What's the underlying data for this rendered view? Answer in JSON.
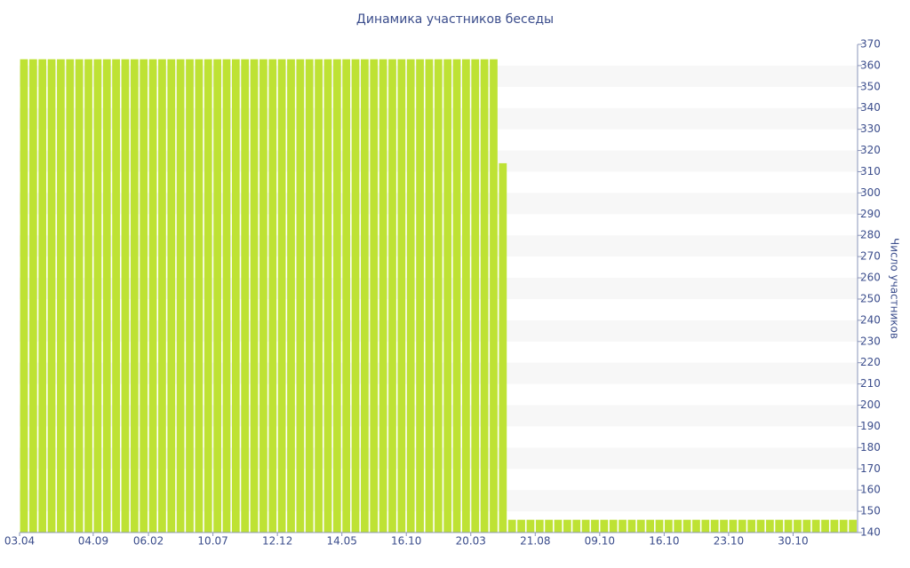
{
  "chart_data": {
    "type": "bar",
    "title": "Динамика участников беседы",
    "y_label": "Число участников",
    "categories": [
      "03.04",
      null,
      null,
      null,
      null,
      null,
      null,
      null,
      "04.09",
      null,
      null,
      null,
      null,
      null,
      "06.02",
      null,
      null,
      null,
      null,
      null,
      null,
      "10.07",
      null,
      null,
      null,
      null,
      null,
      null,
      "12.12",
      null,
      null,
      null,
      null,
      null,
      null,
      "14.05",
      null,
      null,
      null,
      null,
      null,
      null,
      "16.10",
      null,
      null,
      null,
      null,
      null,
      null,
      "20.03",
      null,
      null,
      null,
      null,
      null,
      null,
      "21.08",
      null,
      null,
      null,
      null,
      null,
      null,
      "09.10",
      null,
      null,
      null,
      null,
      null,
      null,
      "16.10",
      null,
      null,
      null,
      null,
      null,
      null,
      "23.10",
      null,
      null,
      null,
      null,
      null,
      null,
      "30.10",
      null,
      null,
      null,
      null,
      null,
      null
    ],
    "values": [
      363,
      363,
      363,
      363,
      363,
      363,
      363,
      363,
      363,
      363,
      363,
      363,
      363,
      363,
      363,
      363,
      363,
      363,
      363,
      363,
      363,
      363,
      363,
      363,
      363,
      363,
      363,
      363,
      363,
      363,
      363,
      363,
      363,
      363,
      363,
      363,
      363,
      363,
      363,
      363,
      363,
      363,
      363,
      363,
      363,
      363,
      363,
      363,
      363,
      363,
      363,
      363,
      314,
      146,
      146,
      146,
      146,
      146,
      146,
      146,
      146,
      146,
      146,
      146,
      146,
      146,
      146,
      146,
      146,
      146,
      146,
      146,
      146,
      146,
      146,
      146,
      146,
      146,
      146,
      146,
      146,
      146,
      146,
      146,
      146,
      146,
      146,
      146,
      146,
      146,
      146
    ],
    "color": "#bee234",
    "ylim": [
      140,
      370
    ],
    "yticks": [
      140,
      150,
      160,
      170,
      180,
      190,
      200,
      210,
      220,
      230,
      240,
      250,
      260,
      270,
      280,
      290,
      300,
      310,
      320,
      330,
      340,
      350,
      360,
      370
    ],
    "y_axis_side": "right",
    "grid_bands": true,
    "band_color": "#f7f7f7"
  }
}
